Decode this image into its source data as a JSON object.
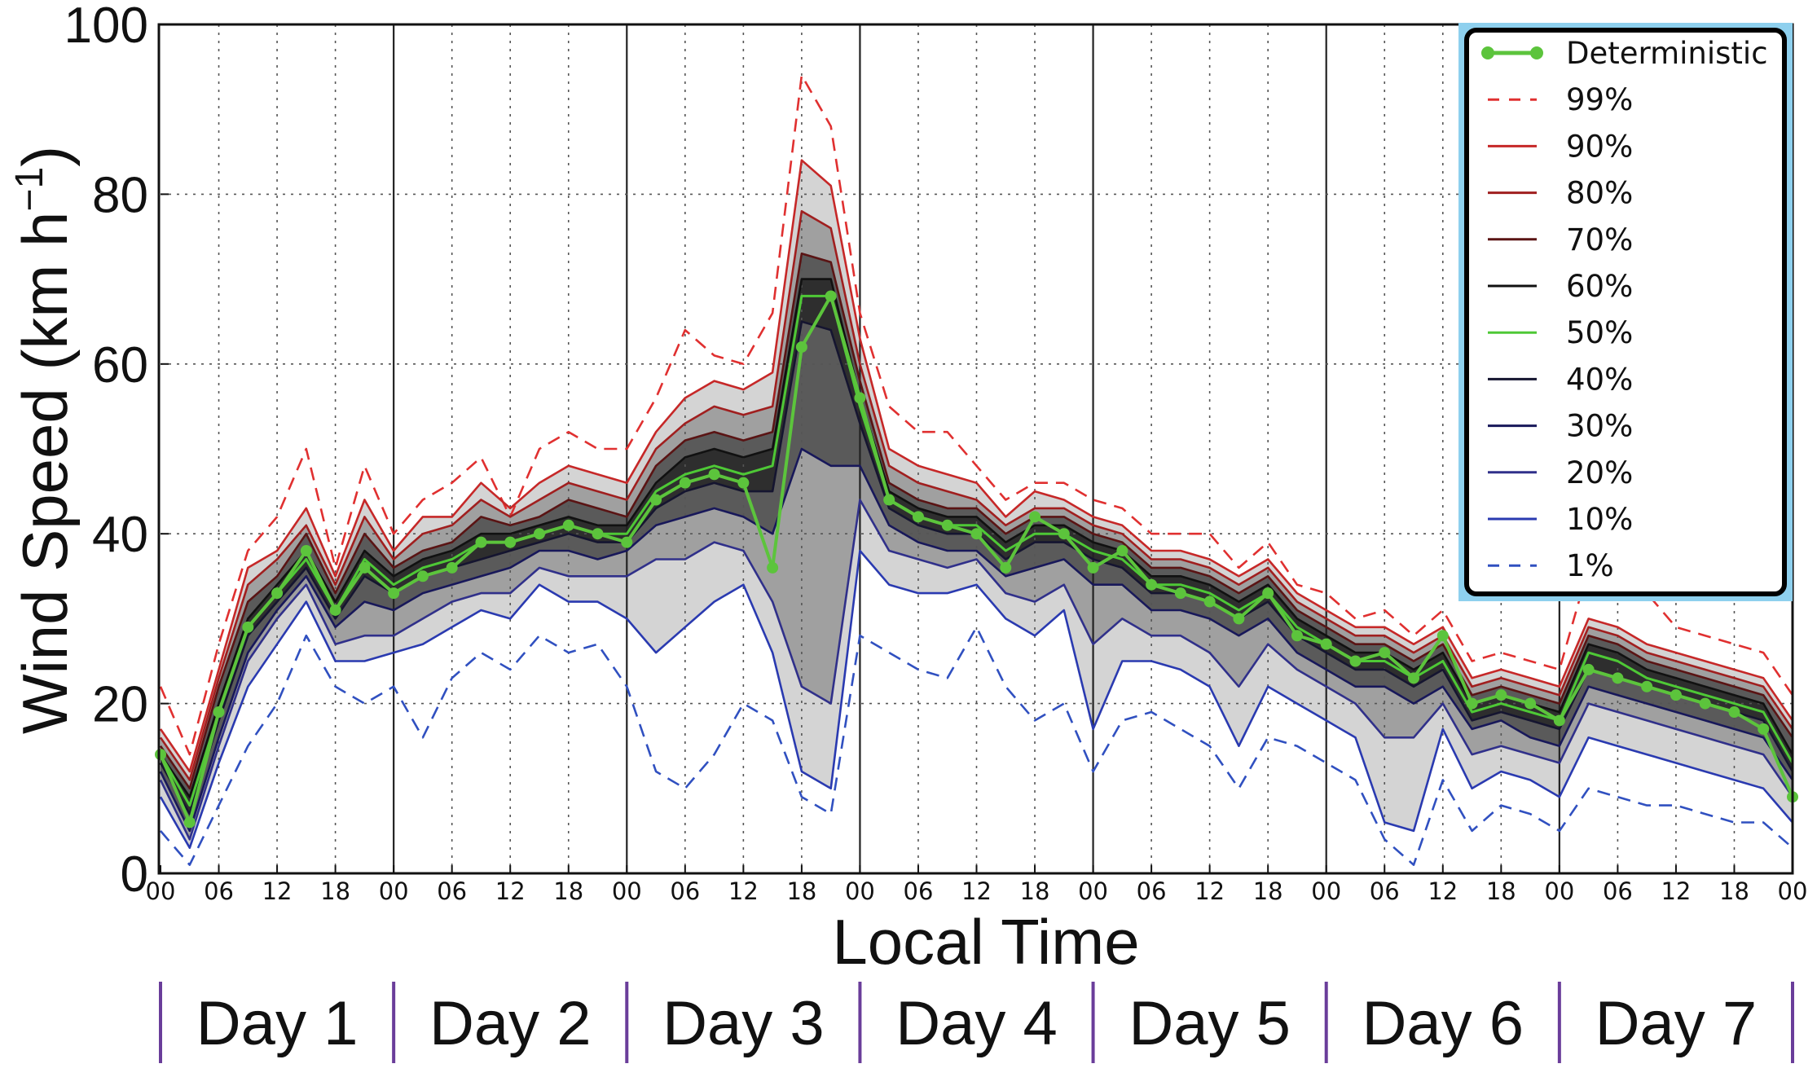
{
  "chart_data": {
    "type": "line",
    "title": "",
    "xlabel": "Local Time",
    "ylabel": "Wind Speed (km h⁻¹)",
    "ylabel_main": "Wind Speed (km h",
    "ylabel_sup": "−1",
    "ylabel_close": ")",
    "ylim": [
      0,
      100
    ],
    "xlim_hours": [
      0,
      168
    ],
    "yticks": [
      "0",
      "20",
      "40",
      "60",
      "80",
      "100"
    ],
    "xtick_labels": [
      "00",
      "06",
      "12",
      "18",
      "00",
      "06",
      "12",
      "18",
      "00",
      "06",
      "12",
      "18",
      "00",
      "06",
      "12",
      "18",
      "00",
      "06",
      "12",
      "18",
      "00",
      "06",
      "12",
      "18",
      "00",
      "06",
      "12",
      "18",
      "00"
    ],
    "days": [
      "Day 1",
      "Day 2",
      "Day 3",
      "Day 4",
      "Day 5",
      "Day 6",
      "Day 7"
    ],
    "colors": {
      "deterministic": "#5cc43c",
      "p99": "#e03030",
      "p90": "#c62828",
      "p80": "#a01f1f",
      "p70": "#5a1414",
      "p60": "#111111",
      "p50": "#4ec836",
      "p40": "#151530",
      "p30": "#18185a",
      "p20": "#30308a",
      "p10": "#2a3ab0",
      "p1": "#3050c0",
      "band_outer": "#d4d4d4",
      "band_mid": "#a0a0a0",
      "band_inner": "#5a5a5a",
      "band_core": "#2e2e2e",
      "legend_frame": "#8ed0ee",
      "day_divider": "#6a3d9a"
    },
    "x_hours": [
      0,
      3,
      6,
      9,
      12,
      15,
      18,
      21,
      24,
      27,
      30,
      33,
      36,
      39,
      42,
      45,
      48,
      51,
      54,
      57,
      60,
      63,
      66,
      69,
      72,
      75,
      78,
      81,
      84,
      87,
      90,
      93,
      96,
      99,
      102,
      105,
      108,
      111,
      114,
      117,
      120,
      123,
      126,
      129,
      132,
      135,
      138,
      141,
      144,
      147,
      150,
      153,
      156,
      159,
      162,
      165,
      168
    ],
    "series": [
      {
        "name": "99%",
        "style": "dashed",
        "values": [
          22,
          14,
          27,
          38,
          42,
          50,
          36,
          48,
          40,
          44,
          46,
          49,
          42,
          50,
          52,
          50,
          50,
          56,
          64,
          61,
          60,
          66,
          94,
          88,
          66,
          55,
          52,
          52,
          48,
          44,
          46,
          46,
          44,
          43,
          40,
          40,
          40,
          36,
          39,
          34,
          33,
          30,
          31,
          28,
          31,
          25,
          26,
          25,
          24,
          36,
          35,
          33,
          29,
          28,
          27,
          26,
          21
        ]
      },
      {
        "name": "90%",
        "style": "solid",
        "values": [
          17,
          12,
          24,
          36,
          38,
          43,
          35,
          44,
          38,
          42,
          42,
          46,
          43,
          46,
          48,
          47,
          46,
          52,
          56,
          58,
          57,
          59,
          84,
          81,
          63,
          50,
          48,
          47,
          46,
          42,
          45,
          44,
          42,
          41,
          38,
          38,
          37,
          35,
          37,
          33,
          31,
          29,
          29,
          27,
          29,
          23,
          24,
          23,
          22,
          30,
          29,
          27,
          26,
          25,
          24,
          23,
          18
        ]
      },
      {
        "name": "80%",
        "style": "solid",
        "values": [
          16,
          11,
          23,
          34,
          37,
          41,
          34,
          42,
          37,
          40,
          41,
          44,
          42,
          44,
          46,
          45,
          44,
          50,
          53,
          55,
          54,
          55,
          78,
          76,
          60,
          48,
          46,
          45,
          44,
          41,
          43,
          43,
          41,
          40,
          37,
          37,
          36,
          34,
          36,
          32,
          30,
          28,
          28,
          26,
          28,
          22,
          23,
          22,
          21,
          29,
          28,
          26,
          25,
          24,
          23,
          22,
          17
        ]
      },
      {
        "name": "70%",
        "style": "solid",
        "values": [
          15,
          10,
          22,
          32,
          35,
          40,
          33,
          40,
          36,
          38,
          39,
          42,
          41,
          42,
          44,
          43,
          42,
          48,
          51,
          52,
          51,
          52,
          73,
          72,
          58,
          46,
          44,
          43,
          43,
          40,
          42,
          42,
          40,
          39,
          36,
          36,
          35,
          33,
          35,
          31,
          29,
          27,
          27,
          25,
          27,
          21,
          22,
          21,
          20,
          28,
          27,
          25,
          24,
          23,
          22,
          21,
          16
        ]
      },
      {
        "name": "60%",
        "style": "solid",
        "values": [
          14,
          9,
          20,
          30,
          34,
          38,
          32,
          38,
          35,
          37,
          38,
          40,
          40,
          41,
          42,
          41,
          41,
          46,
          49,
          50,
          49,
          50,
          70,
          70,
          56,
          45,
          43,
          42,
          42,
          39,
          41,
          41,
          39,
          38,
          35,
          35,
          34,
          32,
          34,
          30,
          28,
          26,
          26,
          24,
          26,
          20,
          21,
          20,
          19,
          27,
          26,
          24,
          23,
          22,
          21,
          20,
          14
        ]
      },
      {
        "name": "50%",
        "style": "solid",
        "values": [
          14,
          8,
          19,
          29,
          33,
          37,
          31,
          37,
          34,
          36,
          37,
          39,
          39,
          40,
          41,
          40,
          40,
          45,
          47,
          48,
          47,
          48,
          68,
          68,
          55,
          44,
          42,
          41,
          41,
          38,
          40,
          40,
          38,
          37,
          34,
          34,
          33,
          31,
          33,
          29,
          27,
          25,
          25,
          23,
          25,
          19,
          20,
          19,
          18,
          26,
          25,
          23,
          22,
          21,
          20,
          19,
          13
        ]
      },
      {
        "name": "40%",
        "style": "solid",
        "values": [
          13,
          7,
          18,
          28,
          32,
          36,
          30,
          35,
          33,
          35,
          36,
          37,
          38,
          39,
          40,
          39,
          39,
          43,
          45,
          46,
          45,
          45,
          65,
          64,
          53,
          43,
          41,
          40,
          40,
          37,
          39,
          39,
          37,
          36,
          33,
          33,
          32,
          30,
          32,
          28,
          26,
          24,
          24,
          22,
          24,
          18,
          19,
          18,
          17,
          24,
          23,
          22,
          21,
          20,
          19,
          18,
          12
        ]
      },
      {
        "name": "30%",
        "style": "solid",
        "values": [
          12,
          5,
          16,
          26,
          31,
          35,
          29,
          32,
          31,
          33,
          34,
          35,
          36,
          38,
          38,
          37,
          38,
          41,
          42,
          43,
          42,
          40,
          50,
          48,
          48,
          41,
          39,
          38,
          38,
          35,
          36,
          37,
          34,
          34,
          31,
          31,
          30,
          28,
          30,
          26,
          24,
          22,
          22,
          20,
          22,
          17,
          18,
          16,
          15,
          22,
          21,
          20,
          19,
          18,
          17,
          16,
          11
        ]
      },
      {
        "name": "20%",
        "style": "solid",
        "values": [
          11,
          4,
          15,
          25,
          30,
          34,
          27,
          28,
          28,
          30,
          32,
          33,
          33,
          36,
          35,
          35,
          35,
          37,
          37,
          39,
          38,
          32,
          22,
          20,
          44,
          38,
          37,
          36,
          37,
          33,
          32,
          34,
          27,
          30,
          28,
          28,
          26,
          22,
          27,
          24,
          22,
          20,
          16,
          16,
          20,
          14,
          15,
          14,
          13,
          20,
          19,
          18,
          17,
          16,
          15,
          14,
          9
        ]
      },
      {
        "name": "10%",
        "style": "solid",
        "values": [
          9,
          3,
          13,
          22,
          27,
          32,
          25,
          25,
          26,
          27,
          29,
          31,
          30,
          34,
          32,
          32,
          30,
          26,
          29,
          32,
          34,
          26,
          12,
          10,
          38,
          34,
          33,
          33,
          34,
          30,
          28,
          31,
          17,
          25,
          25,
          24,
          22,
          15,
          22,
          20,
          18,
          16,
          6,
          5,
          17,
          10,
          12,
          11,
          9,
          16,
          15,
          14,
          13,
          12,
          11,
          10,
          6
        ]
      },
      {
        "name": "1%",
        "style": "dashed",
        "values": [
          5,
          1,
          8,
          15,
          20,
          28,
          22,
          20,
          22,
          16,
          23,
          26,
          24,
          28,
          26,
          27,
          22,
          12,
          10,
          14,
          20,
          18,
          9,
          7,
          28,
          26,
          24,
          23,
          29,
          22,
          18,
          20,
          12,
          18,
          19,
          17,
          15,
          10,
          16,
          15,
          13,
          11,
          4,
          1,
          11,
          5,
          8,
          7,
          5,
          10,
          9,
          8,
          8,
          7,
          6,
          6,
          3
        ]
      },
      {
        "name": "Deterministic",
        "style": "marker",
        "values": [
          14,
          6,
          19,
          29,
          33,
          38,
          31,
          36,
          33,
          35,
          36,
          39,
          39,
          40,
          41,
          40,
          39,
          44,
          46,
          47,
          46,
          36,
          62,
          68,
          56,
          44,
          42,
          41,
          40,
          36,
          42,
          40,
          36,
          38,
          34,
          33,
          32,
          30,
          33,
          28,
          27,
          25,
          26,
          23,
          28,
          20,
          21,
          20,
          18,
          24,
          23,
          22,
          21,
          20,
          19,
          17,
          9
        ]
      }
    ]
  }
}
